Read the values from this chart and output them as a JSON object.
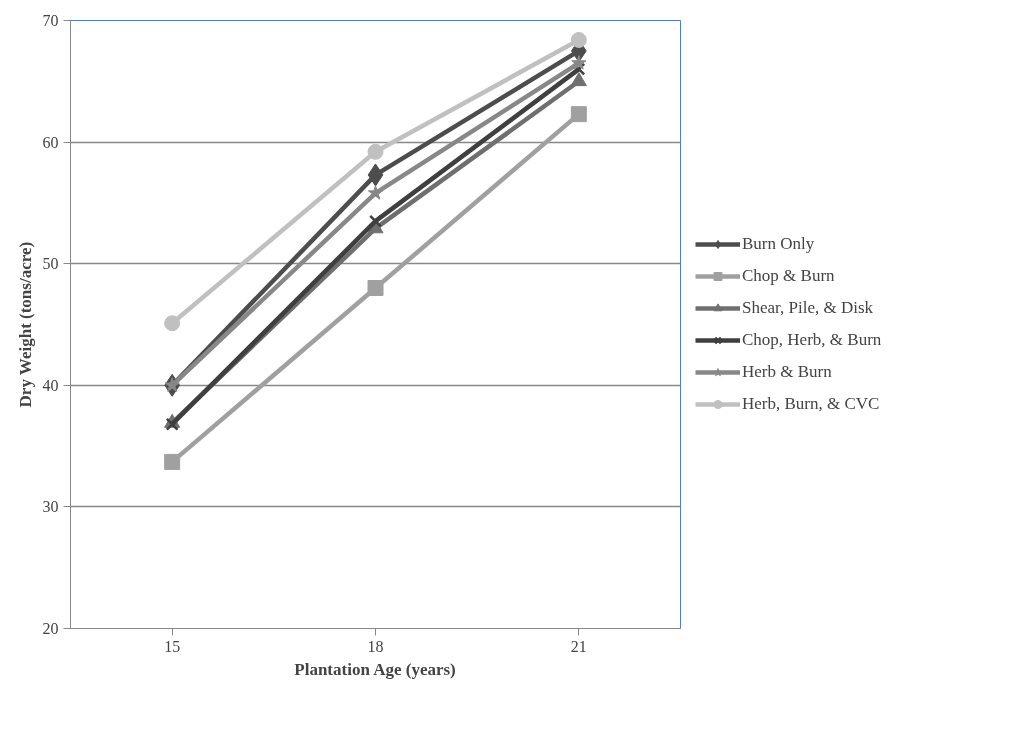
{
  "chart_data": {
    "type": "line",
    "xlabel": "Plantation Age (years)",
    "ylabel": "Dry Weight (tons/acre)",
    "categories": [
      "15",
      "18",
      "21"
    ],
    "ylim": [
      20,
      70
    ],
    "yticks": [
      20,
      30,
      40,
      50,
      60,
      70
    ],
    "grid": "y",
    "legend": "right",
    "series": [
      {
        "name": "Burn Only",
        "color": "#4d4d4d",
        "marker": "diamond",
        "values": [
          40.0,
          57.3,
          67.5
        ]
      },
      {
        "name": "Chop & Burn",
        "color": "#a0a0a0",
        "marker": "square",
        "values": [
          33.7,
          48.0,
          62.3
        ]
      },
      {
        "name": "Shear, Pile, & Disk",
        "color": "#6f6f6f",
        "marker": "triangle",
        "values": [
          36.9,
          52.9,
          65.0
        ]
      },
      {
        "name": "Chop, Herb, & Burn",
        "color": "#3f3f3f",
        "marker": "cross",
        "values": [
          36.8,
          53.5,
          66.0
        ]
      },
      {
        "name": "Herb & Burn",
        "color": "#888888",
        "marker": "star",
        "values": [
          40.0,
          55.8,
          66.5
        ]
      },
      {
        "name": "Herb, Burn, & CVC",
        "color": "#c0c0c0",
        "marker": "circle",
        "values": [
          45.1,
          59.2,
          68.4
        ]
      }
    ]
  }
}
